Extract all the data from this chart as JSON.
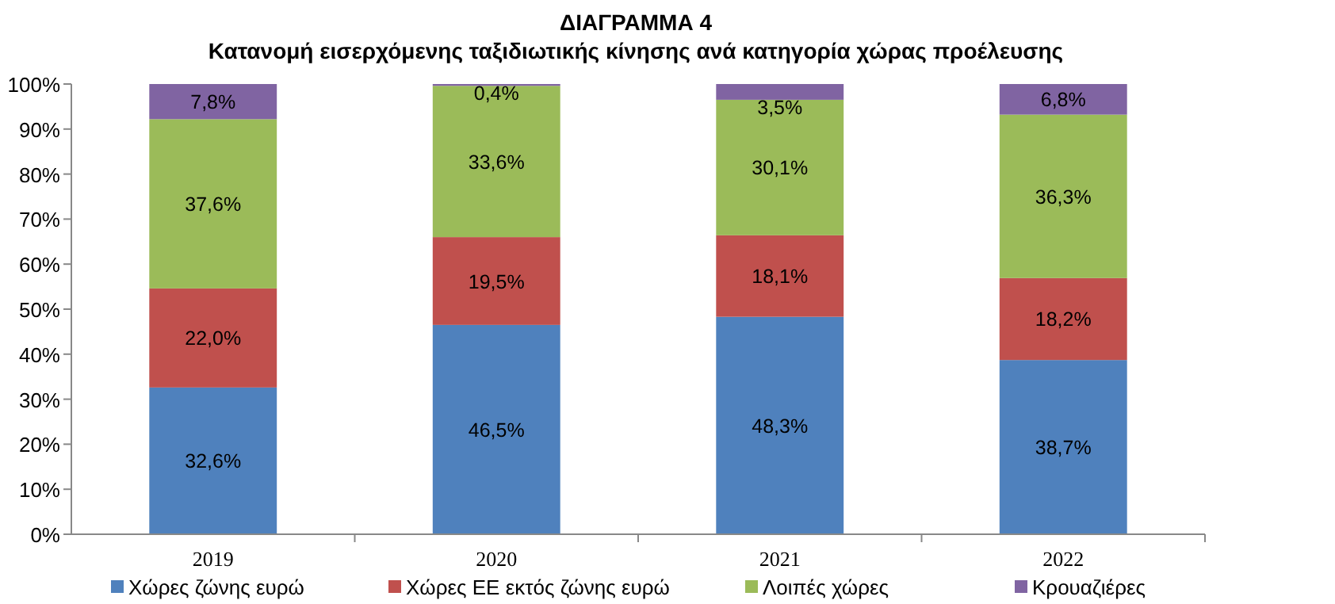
{
  "chart_data": {
    "type": "bar",
    "stacked": true,
    "title": "ΔΙΑΓΡΑΜΜΑ 4",
    "subtitle": "Κατανομή εισερχόμενης ταξιδιωτικής κίνησης ανά κατηγορία χώρας προέλευσης",
    "categories": [
      "2019",
      "2020",
      "2021",
      "2022"
    ],
    "series": [
      {
        "name": "Χώρες ζώνης ευρώ",
        "color": "#4f81bd",
        "values": [
          32.6,
          46.5,
          48.3,
          38.7
        ],
        "value_labels": [
          "32,6%",
          "46,5%",
          "48,3%",
          "38,7%"
        ]
      },
      {
        "name": "Χώρες ΕΕ εκτός ζώνης ευρώ",
        "color": "#c0504d",
        "values": [
          22.0,
          19.5,
          18.1,
          18.2
        ],
        "value_labels": [
          "22,0%",
          "19,5%",
          "18,1%",
          "18,2%"
        ]
      },
      {
        "name": "Λοιπές χώρες",
        "color": "#9bbb59",
        "values": [
          37.6,
          33.6,
          30.1,
          36.3
        ],
        "value_labels": [
          "37,6%",
          "33,6%",
          "30,1%",
          "36,3%"
        ]
      },
      {
        "name": "Κρουαζιέρες",
        "color": "#8064a2",
        "values": [
          7.8,
          0.4,
          3.5,
          6.8
        ],
        "value_labels": [
          "7,8%",
          "0,4%",
          "3,5%",
          "6,8%"
        ]
      }
    ],
    "ylim": [
      0,
      100
    ],
    "yticks": [
      {
        "value": 0,
        "label": "0%"
      },
      {
        "value": 10,
        "label": "10%"
      },
      {
        "value": 20,
        "label": "20%"
      },
      {
        "value": 30,
        "label": "30%"
      },
      {
        "value": 40,
        "label": "40%"
      },
      {
        "value": 50,
        "label": "50%"
      },
      {
        "value": 60,
        "label": "60%"
      },
      {
        "value": 70,
        "label": "70%"
      },
      {
        "value": 80,
        "label": "80%"
      },
      {
        "value": 90,
        "label": "90%"
      },
      {
        "value": 100,
        "label": "100%"
      }
    ],
    "legend": "bottom"
  }
}
